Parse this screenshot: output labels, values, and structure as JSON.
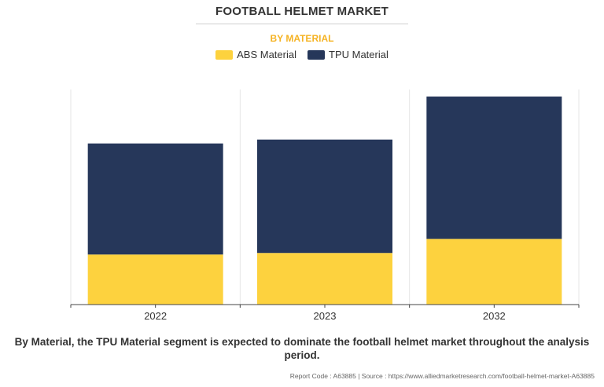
{
  "chart_data": {
    "type": "bar",
    "stacked": true,
    "title": "FOOTBALL HELMET MARKET",
    "subtitle": "BY MATERIAL",
    "categories": [
      "2022",
      "2023",
      "2032"
    ],
    "series": [
      {
        "name": "ABS Material",
        "color": "#fdd23e",
        "values": [
          64,
          66,
          84
        ]
      },
      {
        "name": "TPU Material",
        "color": "#26375a",
        "values": [
          142,
          145,
          182
        ]
      }
    ],
    "ylim": [
      0,
      275
    ],
    "grid": true,
    "legend": "top-center"
  },
  "caption": "By Material, the TPU Material segment is expected to dominate the football helmet market throughout the analysis period.",
  "source": "Report Code : A63885  |  Source : https://www.alliedmarketresearch.com/football-helmet-market-A63885"
}
